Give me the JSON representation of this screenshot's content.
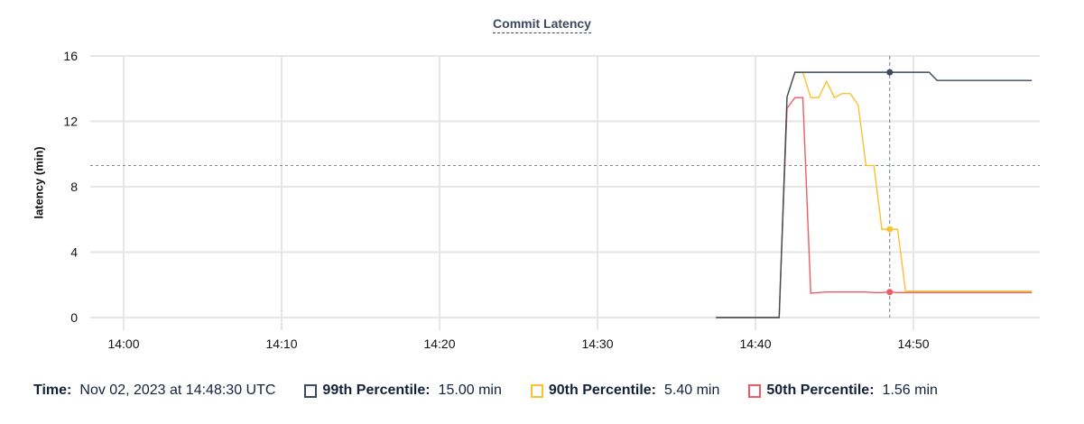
{
  "chart_data": {
    "type": "line",
    "title": "Commit Latency",
    "ylabel": "latency (min)",
    "xlabel": "",
    "ylim": [
      0,
      16
    ],
    "yticks": [
      "0",
      "4",
      "8",
      "12",
      "16"
    ],
    "xticks": [
      "14:00",
      "14:10",
      "14:20",
      "14:30",
      "14:40",
      "14:50"
    ],
    "xlim": [
      "13:58",
      "14:58"
    ],
    "grid": true,
    "reference_line": 9.3,
    "crosshair_time": "14:48:30",
    "x": [
      "14:37:30",
      "14:38:00",
      "14:38:30",
      "14:39:00",
      "14:39:30",
      "14:40:00",
      "14:40:30",
      "14:41:00",
      "14:41:30",
      "14:42:00",
      "14:42:30",
      "14:43:00",
      "14:43:30",
      "14:44:00",
      "14:44:30",
      "14:45:00",
      "14:45:30",
      "14:46:00",
      "14:46:30",
      "14:47:00",
      "14:47:30",
      "14:48:00",
      "14:48:30",
      "14:49:00",
      "14:49:30",
      "14:50:00",
      "14:50:30",
      "14:51:00",
      "14:51:30",
      "14:52:00",
      "14:52:30",
      "14:53:00",
      "14:53:30",
      "14:54:00",
      "14:54:30",
      "14:55:00",
      "14:55:30",
      "14:56:00",
      "14:56:30",
      "14:57:00",
      "14:57:30"
    ],
    "series": [
      {
        "name": "99th Percentile",
        "color": "#3b4a5e",
        "values": [
          0,
          0,
          0,
          0,
          0,
          0,
          0,
          0,
          0,
          13.5,
          15,
          15,
          15,
          15,
          15,
          15,
          15,
          15,
          15,
          15,
          15,
          15,
          15,
          15,
          15,
          15,
          15,
          15,
          14.5,
          14.5,
          14.5,
          14.5,
          14.5,
          14.5,
          14.5,
          14.5,
          14.5,
          14.5,
          14.5,
          14.5,
          14.5
        ]
      },
      {
        "name": "90th Percentile",
        "color": "#f9c12e",
        "values": [
          0,
          0,
          0,
          0,
          0,
          0,
          0,
          0,
          0,
          13.5,
          15,
          15,
          13.45,
          13.45,
          14.45,
          13.45,
          13.7,
          13.7,
          13.0,
          9.3,
          9.3,
          5.4,
          5.4,
          5.4,
          1.62,
          1.62,
          1.62,
          1.62,
          1.62,
          1.62,
          1.62,
          1.62,
          1.62,
          1.62,
          1.62,
          1.62,
          1.62,
          1.62,
          1.62,
          1.62,
          1.62
        ]
      },
      {
        "name": "50th Percentile",
        "color": "#ef5a64",
        "values": [
          0,
          0,
          0,
          0,
          0,
          0,
          0,
          0,
          0,
          12.8,
          13.45,
          13.45,
          1.49,
          1.53,
          1.56,
          1.56,
          1.56,
          1.56,
          1.56,
          1.56,
          1.53,
          1.53,
          1.56,
          1.53,
          1.53,
          1.53,
          1.53,
          1.53,
          1.53,
          1.53,
          1.53,
          1.53,
          1.53,
          1.53,
          1.53,
          1.53,
          1.53,
          1.53,
          1.53,
          1.53,
          1.53
        ]
      }
    ]
  },
  "legend": {
    "time_label": "Time:",
    "time_value": "Nov 02, 2023 at 14:48:30 UTC",
    "items": [
      {
        "label": "99th Percentile:",
        "value": "15.00 min"
      },
      {
        "label": "90th Percentile:",
        "value": "5.40 min"
      },
      {
        "label": "50th Percentile:",
        "value": "1.56 min"
      }
    ]
  }
}
